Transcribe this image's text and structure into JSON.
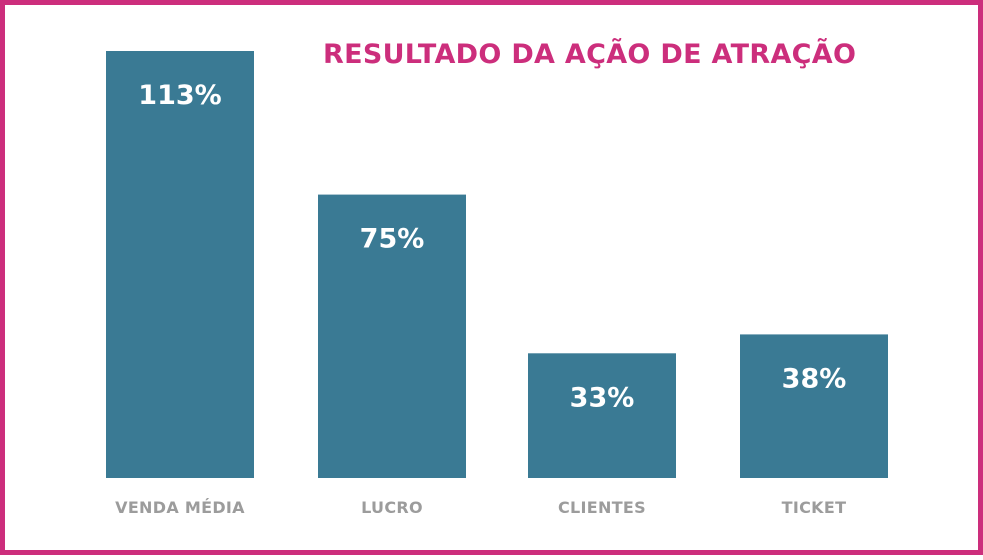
{
  "chart_data": {
    "type": "bar",
    "title": "RESULTADO DA AÇÃO DE ATRAÇÃO",
    "categories": [
      "VENDA MÉDIA",
      "LUCRO",
      "CLIENTES",
      "TICKET"
    ],
    "values": [
      113,
      75,
      33,
      38
    ],
    "value_labels": [
      "113%",
      "75%",
      "33%",
      "38%"
    ],
    "unit": "%",
    "ylim": [
      0,
      113
    ],
    "grid": false,
    "legend": "none",
    "bar_color": "#3a7a94",
    "title_color": "#cc2e7c",
    "border_color": "#cc2e7c",
    "category_label_color": "#9c9c9c"
  }
}
